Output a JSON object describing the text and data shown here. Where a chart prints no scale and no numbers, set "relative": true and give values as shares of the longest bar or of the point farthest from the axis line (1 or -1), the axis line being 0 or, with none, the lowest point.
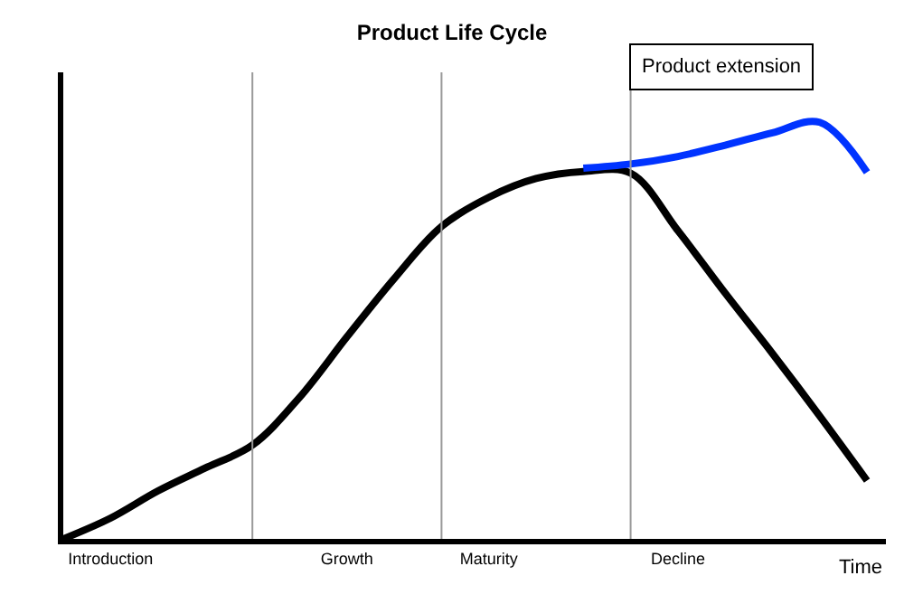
{
  "chart_data": {
    "type": "line",
    "title": "Product Life Cycle",
    "xlabel": "Time",
    "relative": true,
    "categories": [
      null,
      "Introduction",
      null,
      null,
      null,
      null,
      "Growth",
      null,
      null,
      "Maturity",
      null,
      null,
      null,
      "Decline",
      null,
      null,
      null,
      null
    ],
    "series": [
      {
        "color": "#000000",
        "values": [
          0,
          0.05,
          0.115,
          0.17,
          0.225,
          0.34,
          0.485,
          0.625,
          0.75,
          0.82,
          0.865,
          0.882,
          0.878,
          0.74,
          0.59,
          0.445,
          0.295,
          0.14
        ]
      },
      {
        "color": "#0033ff",
        "values": [
          null,
          null,
          null,
          null,
          null,
          null,
          null,
          null,
          null,
          null,
          null,
          0.89,
          0.9,
          0.918,
          0.945,
          0.975,
          1.0,
          0.88
        ]
      }
    ],
    "annotations": [
      "Product extension"
    ],
    "grid": "x",
    "line_style": "solid",
    "marker": "none"
  }
}
